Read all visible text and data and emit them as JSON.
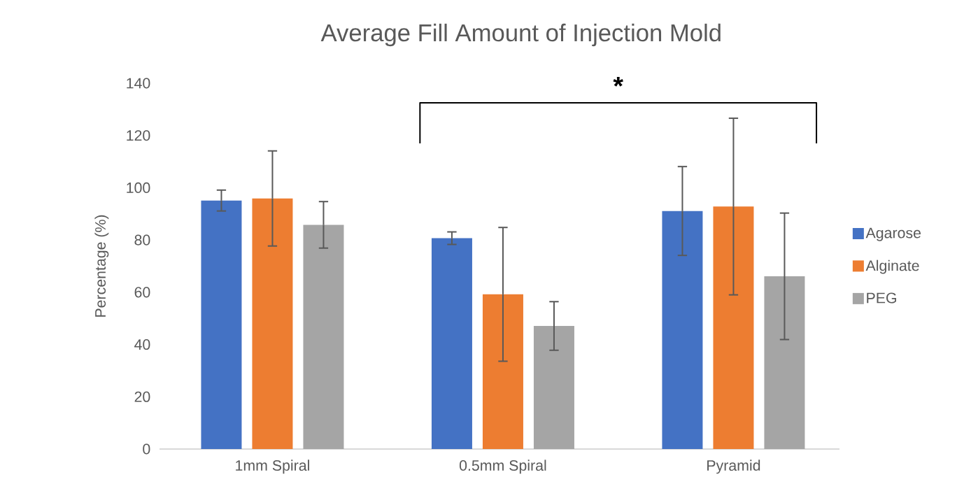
{
  "chart_data": {
    "type": "bar",
    "title": "Average Fill Amount of Injection Mold",
    "ylabel": "Percentage (%)",
    "categories": [
      "1mm Spiral",
      "0.5mm Spiral",
      "Pyramid"
    ],
    "series": [
      {
        "name": "Agarose",
        "color": "#4472c4",
        "values": [
          95.1,
          80.7,
          91.1
        ],
        "errors": [
          4,
          2.4,
          17
        ]
      },
      {
        "name": "Alginate",
        "color": "#ed7d31",
        "values": [
          95.9,
          59.2,
          92.8
        ],
        "errors": [
          18.2,
          25.6,
          33.8
        ]
      },
      {
        "name": "PEG",
        "color": "#a5a5a5",
        "values": [
          85.8,
          47.1,
          66.1
        ],
        "errors": [
          8.9,
          9.3,
          24.2
        ]
      }
    ],
    "ylim": [
      0,
      140
    ],
    "yticks": [
      0,
      20,
      40,
      60,
      80,
      100,
      120,
      140
    ],
    "legend": "right",
    "annotations": [
      "*"
    ]
  }
}
